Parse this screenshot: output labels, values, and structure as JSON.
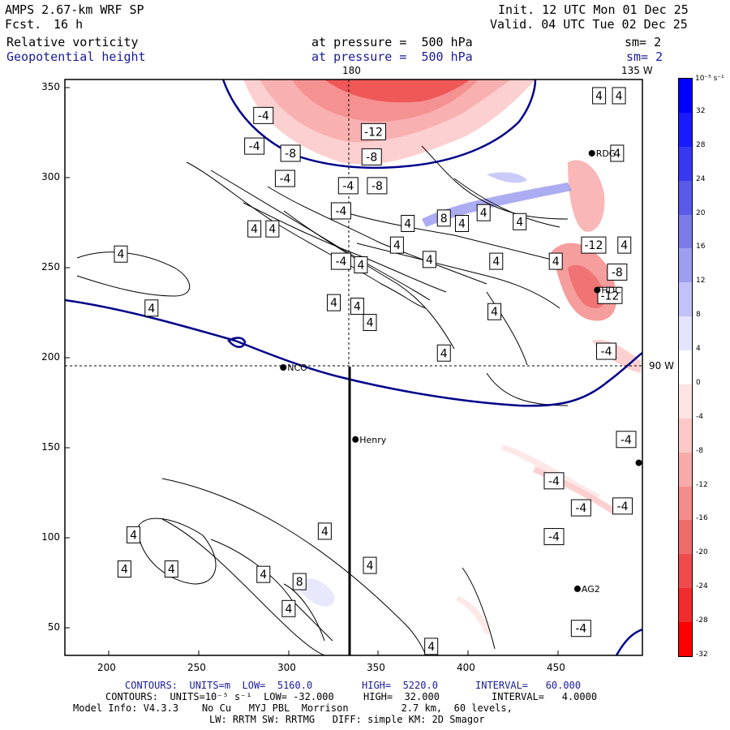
{
  "header": {
    "model": "AMPS 2.67-km WRF SP",
    "fcst_label": "Fcst.",
    "fcst_value": "16 h",
    "init": "Init. 12 UTC Mon 01 Dec 25",
    "valid": "Valid. 04 UTC Tue 02 Dec 25",
    "field1": "Relative vorticity",
    "field1_level": "at pressure =  500 hPa",
    "field1_sm": "sm= 2",
    "field2": "Geopotential height",
    "field2_level": "at pressure =  500 hPa",
    "field2_sm": "sm= 2"
  },
  "map": {
    "lon_top_180": "180",
    "lon_top_135w": "135 W",
    "lat_right": "90 W",
    "x_ticks": [
      "200",
      "250",
      "300",
      "350",
      "400",
      "450"
    ],
    "y_ticks": [
      "350",
      "300",
      "250",
      "200",
      "150",
      "100",
      "50"
    ],
    "stations": [
      {
        "name": "NCO",
        "x": 296,
        "y": 195
      },
      {
        "name": "Henry",
        "x": 336,
        "y": 155
      },
      {
        "name": "HDC",
        "x": 470,
        "y": 238
      },
      {
        "name": "AG2",
        "x": 459,
        "y": 72
      },
      {
        "name": "RDG",
        "x": 467,
        "y": 314
      },
      {
        "name": "",
        "x": 493,
        "y": 142
      }
    ],
    "contour_labels": [
      {
        "t": "-4",
        "x": 285,
        "y": 335
      },
      {
        "t": "-4",
        "x": 280,
        "y": 318
      },
      {
        "t": "-8",
        "x": 300,
        "y": 314
      },
      {
        "t": "-12",
        "x": 346,
        "y": 326
      },
      {
        "t": "-8",
        "x": 345,
        "y": 312
      },
      {
        "t": "-4",
        "x": 297,
        "y": 300
      },
      {
        "t": "-4",
        "x": 332,
        "y": 296
      },
      {
        "t": "-8",
        "x": 348,
        "y": 296
      },
      {
        "t": "-4",
        "x": 328,
        "y": 282
      },
      {
        "t": "4",
        "x": 280,
        "y": 272
      },
      {
        "t": "4",
        "x": 290,
        "y": 272
      },
      {
        "t": "4",
        "x": 206,
        "y": 258
      },
      {
        "t": "4",
        "x": 365,
        "y": 275
      },
      {
        "t": "8",
        "x": 385,
        "y": 278
      },
      {
        "t": "4",
        "x": 395,
        "y": 275
      },
      {
        "t": "4",
        "x": 407,
        "y": 281
      },
      {
        "t": "4",
        "x": 427,
        "y": 276
      },
      {
        "t": "4",
        "x": 359,
        "y": 263
      },
      {
        "t": "-4",
        "x": 328,
        "y": 254
      },
      {
        "t": "4",
        "x": 339,
        "y": 252
      },
      {
        "t": "4",
        "x": 377,
        "y": 255
      },
      {
        "t": "4",
        "x": 414,
        "y": 254
      },
      {
        "t": "4",
        "x": 447,
        "y": 254
      },
      {
        "t": "4",
        "x": 223,
        "y": 228
      },
      {
        "t": "4",
        "x": 324,
        "y": 231
      },
      {
        "t": "4",
        "x": 337,
        "y": 229
      },
      {
        "t": "4",
        "x": 344,
        "y": 220
      },
      {
        "t": "4",
        "x": 413,
        "y": 226
      },
      {
        "t": "4",
        "x": 385,
        "y": 203
      },
      {
        "t": "-4",
        "x": 475,
        "y": 204
      },
      {
        "t": "-12",
        "x": 468,
        "y": 263
      },
      {
        "t": "4",
        "x": 485,
        "y": 263
      },
      {
        "t": "-8",
        "x": 481,
        "y": 248
      },
      {
        "t": "-12",
        "x": 477,
        "y": 235
      },
      {
        "t": "4",
        "x": 481,
        "y": 314
      },
      {
        "t": "-4",
        "x": 486,
        "y": 155
      },
      {
        "t": "-4",
        "x": 446,
        "y": 132
      },
      {
        "t": "-4",
        "x": 461,
        "y": 117
      },
      {
        "t": "-4",
        "x": 484,
        "y": 118
      },
      {
        "t": "-4",
        "x": 446,
        "y": 101
      },
      {
        "t": "-4",
        "x": 461,
        "y": 50
      },
      {
        "t": "4",
        "x": 471,
        "y": 346
      },
      {
        "t": "4",
        "x": 482,
        "y": 346
      },
      {
        "t": "4",
        "x": 213,
        "y": 102
      },
      {
        "t": "4",
        "x": 208,
        "y": 83
      },
      {
        "t": "4",
        "x": 234,
        "y": 83
      },
      {
        "t": "4",
        "x": 285,
        "y": 80
      },
      {
        "t": "8",
        "x": 305,
        "y": 76
      },
      {
        "t": "4",
        "x": 299,
        "y": 61
      },
      {
        "t": "4",
        "x": 319,
        "y": 104
      },
      {
        "t": "4",
        "x": 344,
        "y": 85
      },
      {
        "t": "4",
        "x": 378,
        "y": 40
      }
    ]
  },
  "colorbar": {
    "unit": "10⁻⁵ s⁻¹",
    "labels": [
      "32",
      "28",
      "24",
      "20",
      "16",
      "12",
      "8",
      "4",
      "0",
      "-4",
      "-8",
      "-12",
      "-16",
      "-20",
      "-24",
      "-28",
      "-32"
    ],
    "colors": [
      "#0000ff",
      "#1a1aff",
      "#3838f0",
      "#5a5ae8",
      "#7c7ce8",
      "#9e9ef0",
      "#c2c2f8",
      "#e4e4fc",
      "#ffffff",
      "#fde4e4",
      "#fbc8c8",
      "#f8aaaa",
      "#f48c8c",
      "#f06c6c",
      "#ee4c4c",
      "#f22c2c",
      "#ff0000"
    ]
  },
  "footer": {
    "line1_label": "CONTOURS:  UNITS=m  LOW=  5160.0",
    "line1_high": "HIGH=  5220.0",
    "line1_interval": "INTERVAL=   60.000",
    "line2_label": "CONTOURS:  UNITS=10⁻⁵ s⁻¹  LOW= -32.000",
    "line2_high": "HIGH=  32.000",
    "line2_interval": "INTERVAL=   4.0000",
    "line3": "Model Info: V4.3.3    No Cu   MYJ PBL  Morrison         2.7 km,  60 levels,",
    "line4": "LW: RRTM SW: RRTMG   DIFF: simple KM: 2D Smagor"
  }
}
